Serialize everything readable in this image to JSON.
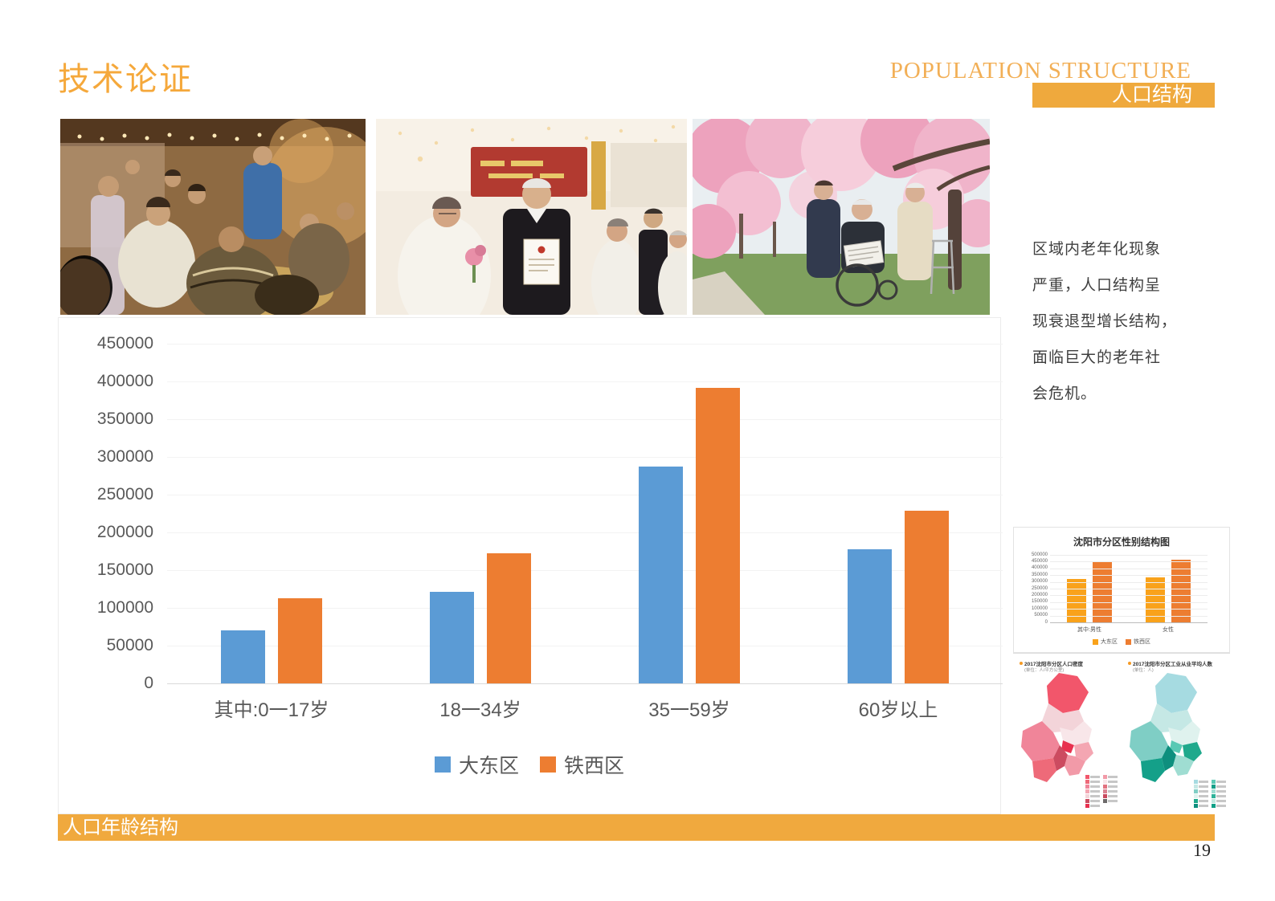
{
  "header": {
    "title": "技术论证",
    "subtitle_en": "POPULATION STRUCTURE",
    "subtitle_zh": "人口结构"
  },
  "photos": [
    {
      "label": "elderly-gathering-painting"
    },
    {
      "label": "elderly-wedding-ceremony"
    },
    {
      "label": "elderly-under-cherry-blossoms"
    }
  ],
  "note": {
    "lines": [
      "区域内老年化现象",
      "严重，人口结构呈",
      "现衰退型增长结构，",
      "面临巨大的老年社",
      "会危机。"
    ]
  },
  "footer": {
    "label": "人口年龄结构",
    "page_number": "19"
  },
  "chart_data": [
    {
      "id": "age-structure",
      "type": "bar",
      "title": "",
      "categories": [
        "其中:0一17岁",
        "18一34岁",
        "35一59岁",
        "60岁以上"
      ],
      "series": [
        {
          "name": "大东区",
          "color": "#5B9BD5",
          "values": [
            70000,
            121000,
            287000,
            178000
          ]
        },
        {
          "name": "铁西区",
          "color": "#ED7D31",
          "values": [
            113000,
            172000,
            391000,
            229000
          ]
        }
      ],
      "ylim": [
        0,
        450000
      ],
      "ytick_labels": [
        "450000",
        "400000",
        "350000",
        "300000",
        "250000",
        "200000",
        "150000",
        "100000",
        "50000",
        "0"
      ],
      "grid": true,
      "legend_position": "bottom"
    },
    {
      "id": "gender-structure",
      "type": "bar",
      "title": "沈阳市分区性别结构图",
      "categories": [
        "其中:男性",
        "女性"
      ],
      "series": [
        {
          "name": "大东区",
          "color": "#F9A21B",
          "values": [
            320000,
            335000
          ]
        },
        {
          "name": "铁西区",
          "color": "#ED7D31",
          "values": [
            445000,
            465000
          ]
        }
      ],
      "ylim": [
        0,
        500000
      ],
      "ytick_labels": [
        "500000",
        "450000",
        "400000",
        "350000",
        "300000",
        "250000",
        "200000",
        "150000",
        "100000",
        "50000",
        "0"
      ],
      "grid": true,
      "legend_position": "bottom"
    },
    {
      "id": "population-density-map",
      "type": "heatmap",
      "title": "2017沈阳市分区人口密度",
      "subtitle": "(单位：人/平方公里)",
      "palette": [
        "#F2566B",
        "#F3D4D9",
        "#F08599",
        "#F8E6E9",
        "#E8314F",
        "#F4A6B2",
        "#EE6A79",
        "#CC4B60",
        "#F29AA8"
      ],
      "legend_colors": [
        "#F2566B",
        "#EE6A79",
        "#F08599",
        "#F4A6B2",
        "#F3D4D9",
        "#CC4B60",
        "#E8314F",
        "#F29AA8",
        "#F8E6E9",
        "#E2717F",
        "#D98391",
        "#C94A5E",
        "#6D6A6A"
      ]
    },
    {
      "id": "industry-employment-map",
      "type": "heatmap",
      "title": "2017沈阳市分区工业从业平均人数",
      "subtitle": "(单位：人)",
      "palette": [
        "#A6DBE1",
        "#C5E8E5",
        "#7FCEC5",
        "#DFF2EE",
        "#59C9B4",
        "#1FA98C",
        "#14A089",
        "#0E8F7E",
        "#9FDDD2"
      ],
      "legend_colors": [
        "#A6DBE1",
        "#C5E8E5",
        "#7FCEC5",
        "#DFF2EE",
        "#1FA98C",
        "#0E8F7E",
        "#59C9B4",
        "#14A089",
        "#9FDDD2",
        "#2FB39A",
        "#BFE8DF",
        "#0FA187"
      ]
    }
  ]
}
